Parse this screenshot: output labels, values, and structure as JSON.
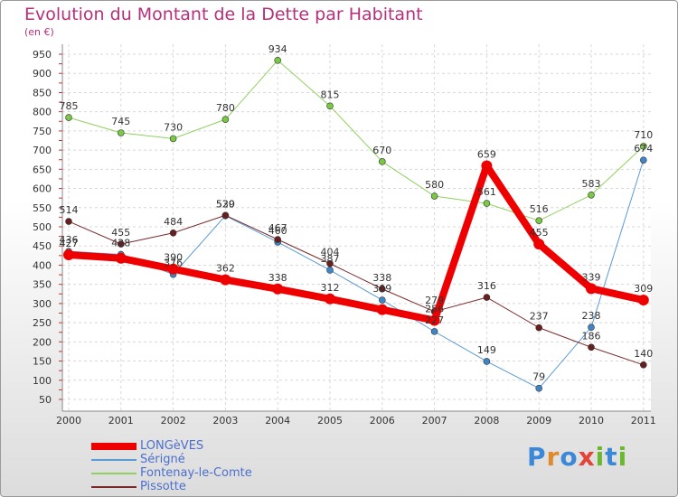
{
  "title": "Evolution du Montant de la Dette par Habitant",
  "subtitle": "(en €)",
  "logo": {
    "text": "Proxiti",
    "letter_colors": [
      "#3c88d8",
      "#e08a2e",
      "#3c88d8",
      "#e2443a",
      "#69b82e",
      "#3c88d8",
      "#69b82e"
    ]
  },
  "chart_data": {
    "type": "line",
    "title": "Evolution du Montant de la Dette par Habitant",
    "subtitle": "(en €)",
    "x": [
      "2000",
      "2001",
      "2002",
      "2003",
      "2004",
      "2005",
      "2006",
      "2007",
      "2008",
      "2009",
      "2010",
      "2011"
    ],
    "ylim": [
      50,
      950
    ],
    "yticks": [
      50,
      100,
      150,
      200,
      250,
      300,
      350,
      400,
      450,
      500,
      550,
      600,
      650,
      700,
      750,
      800,
      850,
      900,
      950
    ],
    "grid": true,
    "legend_position": "bottom-left",
    "series": [
      {
        "name": "LONGèVES",
        "color": "#ee0000",
        "width": 8,
        "values": [
          427,
          418,
          390,
          362,
          338,
          312,
          284,
          256,
          659,
          455,
          339,
          309
        ],
        "labels_shown": [
          true,
          false,
          true,
          true,
          true,
          true,
          false,
          true,
          true,
          true,
          true,
          true
        ]
      },
      {
        "name": "Sérigné",
        "color": "#5b9bd5",
        "width": 1,
        "values": [
          436,
          428,
          376,
          529,
          460,
          387,
          309,
          227,
          149,
          79,
          238,
          674
        ],
        "labels_shown": [
          true,
          true,
          true,
          true,
          true,
          true,
          true,
          true,
          true,
          true,
          true,
          true
        ]
      },
      {
        "name": "Fontenay-le-Comte",
        "color": "#90d060",
        "width": 1,
        "values": [
          785,
          745,
          730,
          780,
          934,
          815,
          670,
          580,
          561,
          516,
          583,
          710
        ],
        "labels_shown": [
          true,
          true,
          true,
          true,
          true,
          true,
          true,
          true,
          true,
          true,
          true,
          true
        ]
      },
      {
        "name": "Pissotte",
        "color": "#7a2a2a",
        "width": 1,
        "values": [
          514,
          455,
          484,
          530,
          467,
          404,
          338,
          279,
          316,
          237,
          186,
          140
        ],
        "labels_shown": [
          true,
          true,
          true,
          true,
          true,
          true,
          true,
          true,
          true,
          true,
          true,
          true
        ]
      }
    ]
  }
}
